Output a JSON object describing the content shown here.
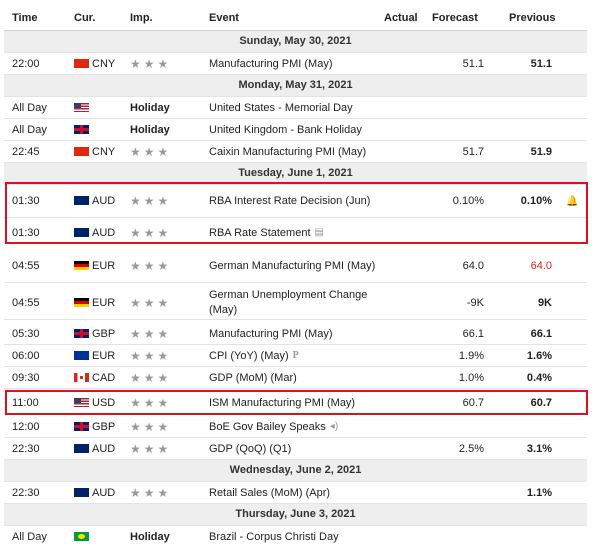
{
  "header": {
    "time": "Time",
    "cur": "Cur.",
    "imp": "Imp.",
    "event": "Event",
    "actual": "Actual",
    "forecast": "Forecast",
    "previous": "Previous"
  },
  "rows": [
    {
      "date": "Sunday, May 30, 2021"
    },
    {
      "time": "22:00",
      "flag": "cn",
      "cur": "CNY",
      "imp": "★★★",
      "event": "Manufacturing PMI (May)",
      "forecast": "51.1",
      "previous": "51.1"
    },
    {
      "date": "Monday, May 31, 2021"
    },
    {
      "time": "All Day",
      "flag": "us",
      "imp": "Holiday",
      "event": "United States - Memorial Day"
    },
    {
      "time": "All Day",
      "flag": "gb",
      "imp": "Holiday",
      "event": "United Kingdom - Bank Holiday"
    },
    {
      "time": "22:45",
      "flag": "cn",
      "cur": "CNY",
      "imp": "★★★",
      "event": "Caixin Manufacturing PMI (May)",
      "forecast": "51.7",
      "previous": "51.9"
    },
    {
      "date": "Tuesday, June 1, 2021"
    },
    {
      "time": "01:30",
      "flag": "au",
      "cur": "AUD",
      "imp": "★★★",
      "event": "RBA Interest Rate Decision (Jun)",
      "forecast": "0.10%",
      "previous": "0.10%",
      "alert": "bell-icon"
    },
    {
      "time": "01:30",
      "flag": "au",
      "cur": "AUD",
      "imp": "★★★",
      "event": "RBA Rate Statement",
      "event_icon": "document-icon"
    },
    {
      "time": "04:55",
      "flag": "de",
      "cur": "EUR",
      "imp": "★★★",
      "event": "German Manufacturing PMI (May)",
      "forecast": "64.0",
      "previous": "64.0"
    },
    {
      "time": "04:55",
      "flag": "de",
      "cur": "EUR",
      "imp": "★★★",
      "event": "German Unemployment Change (May)",
      "forecast": "-9K",
      "previous": "9K"
    },
    {
      "time": "05:30",
      "flag": "gb",
      "cur": "GBP",
      "imp": "★★★",
      "event": "Manufacturing PMI (May)",
      "forecast": "66.1",
      "previous": "66.1"
    },
    {
      "time": "06:00",
      "flag": "eu",
      "cur": "EUR",
      "imp": "★★★",
      "event": "CPI (YoY) (May)",
      "event_icon": "preliminary-icon",
      "forecast": "1.9%",
      "previous": "1.6%"
    },
    {
      "time": "09:30",
      "flag": "ca",
      "cur": "CAD",
      "imp": "★★★",
      "event": "GDP (MoM) (Mar)",
      "forecast": "1.0%",
      "previous": "0.4%"
    },
    {
      "time": "11:00",
      "flag": "us",
      "cur": "USD",
      "imp": "★★★",
      "event": "ISM Manufacturing PMI (May)",
      "forecast": "60.7",
      "previous": "60.7"
    },
    {
      "time": "12:00",
      "flag": "gb",
      "cur": "GBP",
      "imp": "★★★",
      "event": "BoE Gov Bailey Speaks",
      "event_icon": "speaker-icon"
    },
    {
      "time": "22:30",
      "flag": "au",
      "cur": "AUD",
      "imp": "★★★",
      "event": "GDP (QoQ) (Q1)",
      "forecast": "2.5%",
      "previous": "3.1%"
    },
    {
      "date": "Wednesday, June 2, 2021"
    },
    {
      "time": "22:30",
      "flag": "au",
      "cur": "AUD",
      "imp": "★★★",
      "event": "Retail Sales (MoM) (Apr)",
      "previous": "1.1%"
    },
    {
      "date": "Thursday, June 3, 2021"
    },
    {
      "time": "All Day",
      "flag": "br",
      "imp": "Holiday",
      "event": "Brazil - Corpus Christi Day"
    }
  ],
  "glyphs": {
    "bell": "🔔",
    "document": "▤",
    "preliminary": "P",
    "speaker": "◂)"
  },
  "colors": {
    "highlight": "#d9121f",
    "previous_red": "#e02424",
    "date_band": "#eeeeee"
  }
}
